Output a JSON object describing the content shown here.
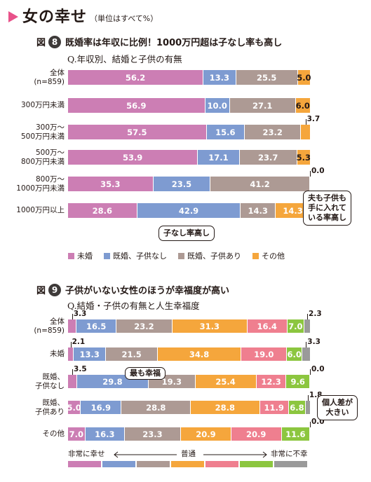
{
  "header": {
    "title": "女の幸せ",
    "note": "（単位はすべて%）"
  },
  "chart_data": [
    {
      "type": "bar",
      "stacked": true,
      "orientation": "horizontal",
      "figure_no": "8",
      "title": "既婚率は年収に比例！1000万円超は子なし率も高し",
      "subtitle": "Q.年収別、結婚と子供の有無",
      "categories": [
        "全体\n(n=859)",
        "300万円未満",
        "300万〜\n500万円未満",
        "500万〜\n800万円未満",
        "800万〜\n1000万円未満",
        "1000万円以上"
      ],
      "series": [
        {
          "name": "未婚",
          "color": "#cc7eb4",
          "values": [
            56.2,
            56.9,
            57.5,
            53.9,
            35.3,
            28.6
          ]
        },
        {
          "name": "既婚、子供なし",
          "color": "#7e9bd1",
          "values": [
            13.3,
            10.0,
            15.6,
            17.1,
            23.5,
            42.9
          ]
        },
        {
          "name": "既婚、子供あり",
          "color": "#ad9a94",
          "values": [
            25.5,
            27.1,
            23.2,
            23.7,
            41.2,
            14.3
          ]
        },
        {
          "name": "その他",
          "color": "#f5a63c",
          "values": [
            5.0,
            6.0,
            3.7,
            5.3,
            0.0,
            14.3
          ]
        }
      ],
      "annotations": {
        "callout_1": "子なし率高し",
        "callout_2": "夫も子供も\n手に入れて\nいる率高し"
      },
      "xlim": [
        0,
        100
      ]
    },
    {
      "type": "bar",
      "stacked": true,
      "orientation": "horizontal",
      "figure_no": "9",
      "title": "子供がいない女性のほうが幸福度が高い",
      "subtitle": "Q.結婚・子供の有無と人生幸福度",
      "categories": [
        "全体\n(n=859)",
        "未婚",
        "既婚、\n子供なし",
        "既婚、\n子供あり",
        "その他"
      ],
      "series": [
        {
          "color": "#cc7eb4",
          "values": [
            3.3,
            2.1,
            3.5,
            5.0,
            7.0
          ]
        },
        {
          "color": "#7e9bd1",
          "values": [
            16.5,
            13.3,
            29.8,
            16.9,
            16.3
          ]
        },
        {
          "color": "#ad9a94",
          "values": [
            23.2,
            21.5,
            19.3,
            28.8,
            23.3
          ]
        },
        {
          "color": "#f5a63c",
          "values": [
            31.3,
            34.8,
            25.4,
            28.8,
            20.9
          ]
        },
        {
          "color": "#ef7f8f",
          "values": [
            16.4,
            19.0,
            12.3,
            11.9,
            20.9
          ]
        },
        {
          "color": "#8cc63f",
          "values": [
            7.0,
            6.0,
            9.6,
            6.8,
            11.6
          ]
        },
        {
          "color": "#9a9a9a",
          "values": [
            2.3,
            3.3,
            0.0,
            1.8,
            0.0
          ]
        }
      ],
      "annotations": {
        "callout_1": "最も幸福",
        "callout_2": "個人差が\n大きい"
      },
      "scale": {
        "left": "非常に幸せ",
        "center": "普通",
        "right": "非常に不幸"
      },
      "xlim": [
        0,
        100
      ]
    }
  ]
}
